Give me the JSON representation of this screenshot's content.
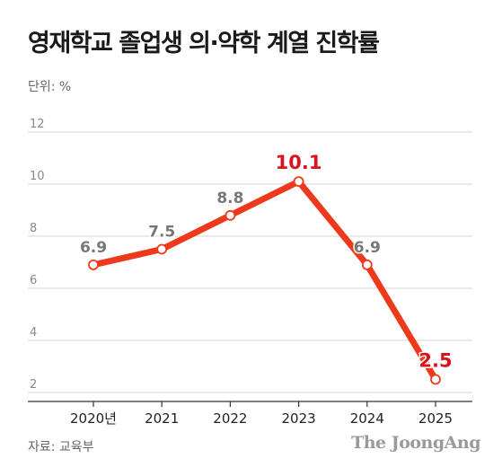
{
  "title": "영재학교 졸업생 의·약학 계열 진학률",
  "unit_label": "단위: %",
  "source": "자료: 교육부",
  "logo_text": "The JoongAng",
  "chart_data": {
    "type": "line",
    "categories": [
      "2020년",
      "2021",
      "2022",
      "2023",
      "2024",
      "2025"
    ],
    "values": [
      6.9,
      7.5,
      8.8,
      10.1,
      6.9,
      2.5
    ],
    "value_labels": [
      "6.9",
      "7.5",
      "8.8",
      "10.1",
      "6.9",
      "2.5"
    ],
    "highlight_indices": [
      3,
      5
    ],
    "yticks": [
      "2",
      "4",
      "6",
      "8",
      "10",
      "12"
    ],
    "ylim": [
      2,
      12
    ],
    "grid": true,
    "colors": {
      "line": "#ee3a1c",
      "highlight_label": "#d9141c",
      "label": "#777777",
      "grid": "#d6d6d6"
    }
  }
}
